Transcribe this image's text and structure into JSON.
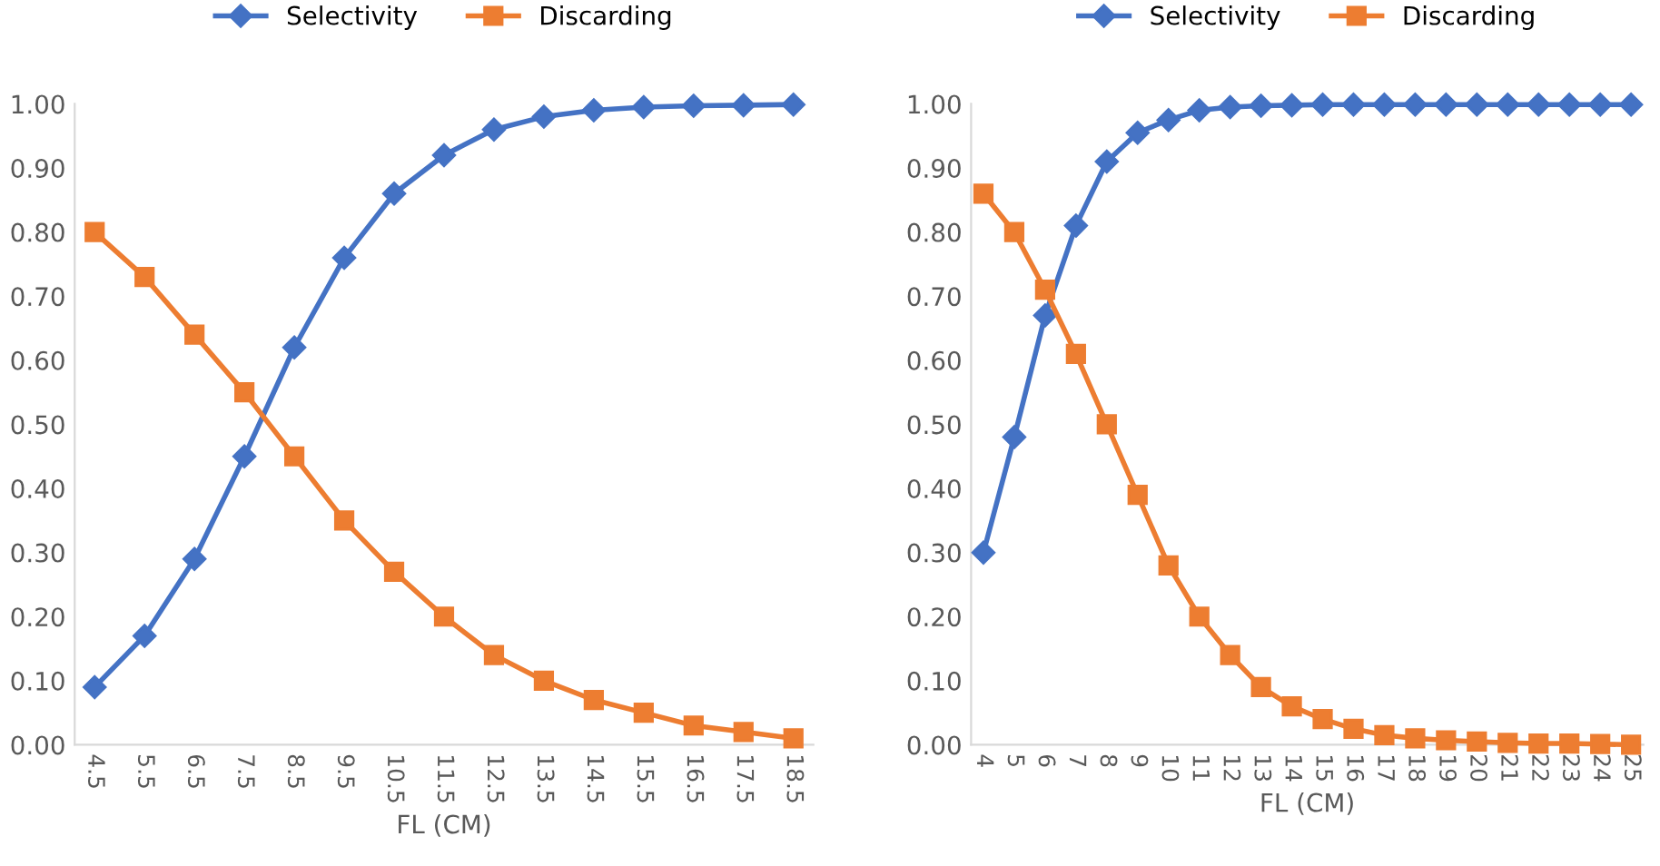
{
  "chart_data": [
    {
      "type": "line",
      "xlabel": "FL (CM)",
      "legend": "top",
      "grid": false,
      "categories": [
        "4.5",
        "5.5",
        "6.5",
        "7.5",
        "8.5",
        "9.5",
        "10.5",
        "11.5",
        "12.5",
        "13.5",
        "14.5",
        "15.5",
        "16.5",
        "17.5",
        "18.5"
      ],
      "ylim": [
        0,
        1
      ],
      "yticks": [
        {
          "value": 0,
          "label": "0.00"
        },
        {
          "value": 0.1,
          "label": "0.10"
        },
        {
          "value": 0.2,
          "label": "0.20"
        },
        {
          "value": 0.3,
          "label": "0.30"
        },
        {
          "value": 0.4,
          "label": "0.40"
        },
        {
          "value": 0.5,
          "label": "0.50"
        },
        {
          "value": 0.6,
          "label": "0.60"
        },
        {
          "value": 0.7,
          "label": "0.70"
        },
        {
          "value": 0.8,
          "label": "0.80"
        },
        {
          "value": 0.9,
          "label": "0.90"
        },
        {
          "value": 1,
          "label": "1.00"
        }
      ],
      "series": [
        {
          "name": "Selectivity",
          "color": "#4472c4",
          "marker": "diamond",
          "values": [
            0.09,
            0.17,
            0.29,
            0.45,
            0.62,
            0.76,
            0.86,
            0.92,
            0.96,
            0.98,
            0.99,
            0.995,
            0.997,
            0.998,
            0.999
          ]
        },
        {
          "name": "Discarding",
          "color": "#ed7d31",
          "marker": "square",
          "values": [
            0.8,
            0.73,
            0.64,
            0.55,
            0.45,
            0.35,
            0.27,
            0.2,
            0.14,
            0.1,
            0.07,
            0.05,
            0.03,
            0.02,
            0.01
          ]
        }
      ]
    },
    {
      "type": "line",
      "xlabel": "FL (CM)",
      "legend": "top",
      "grid": false,
      "categories": [
        "4",
        "5",
        "6",
        "7",
        "8",
        "9",
        "10",
        "11",
        "12",
        "13",
        "14",
        "15",
        "16",
        "17",
        "18",
        "19",
        "20",
        "21",
        "22",
        "23",
        "24",
        "25"
      ],
      "ylim": [
        0,
        1
      ],
      "yticks": [
        {
          "value": 0,
          "label": "0.00"
        },
        {
          "value": 0.1,
          "label": "0.10"
        },
        {
          "value": 0.2,
          "label": "0.20"
        },
        {
          "value": 0.3,
          "label": "0.30"
        },
        {
          "value": 0.4,
          "label": "0.40"
        },
        {
          "value": 0.5,
          "label": "0.50"
        },
        {
          "value": 0.6,
          "label": "0.60"
        },
        {
          "value": 0.7,
          "label": "0.70"
        },
        {
          "value": 0.8,
          "label": "0.80"
        },
        {
          "value": 0.9,
          "label": "0.90"
        },
        {
          "value": 1,
          "label": "1.00"
        }
      ],
      "series": [
        {
          "name": "Selectivity",
          "color": "#4472c4",
          "marker": "diamond",
          "values": [
            0.3,
            0.48,
            0.67,
            0.81,
            0.91,
            0.955,
            0.975,
            0.99,
            0.995,
            0.997,
            0.998,
            0.999,
            0.999,
            0.999,
            0.999,
            0.999,
            0.999,
            0.999,
            0.999,
            0.999,
            0.999,
            0.999
          ]
        },
        {
          "name": "Discarding",
          "color": "#ed7d31",
          "marker": "square",
          "values": [
            0.86,
            0.8,
            0.71,
            0.61,
            0.5,
            0.39,
            0.28,
            0.2,
            0.14,
            0.09,
            0.06,
            0.04,
            0.025,
            0.015,
            0.01,
            0.007,
            0.005,
            0.003,
            0.002,
            0.002,
            0.001,
            0.0
          ]
        }
      ]
    }
  ]
}
